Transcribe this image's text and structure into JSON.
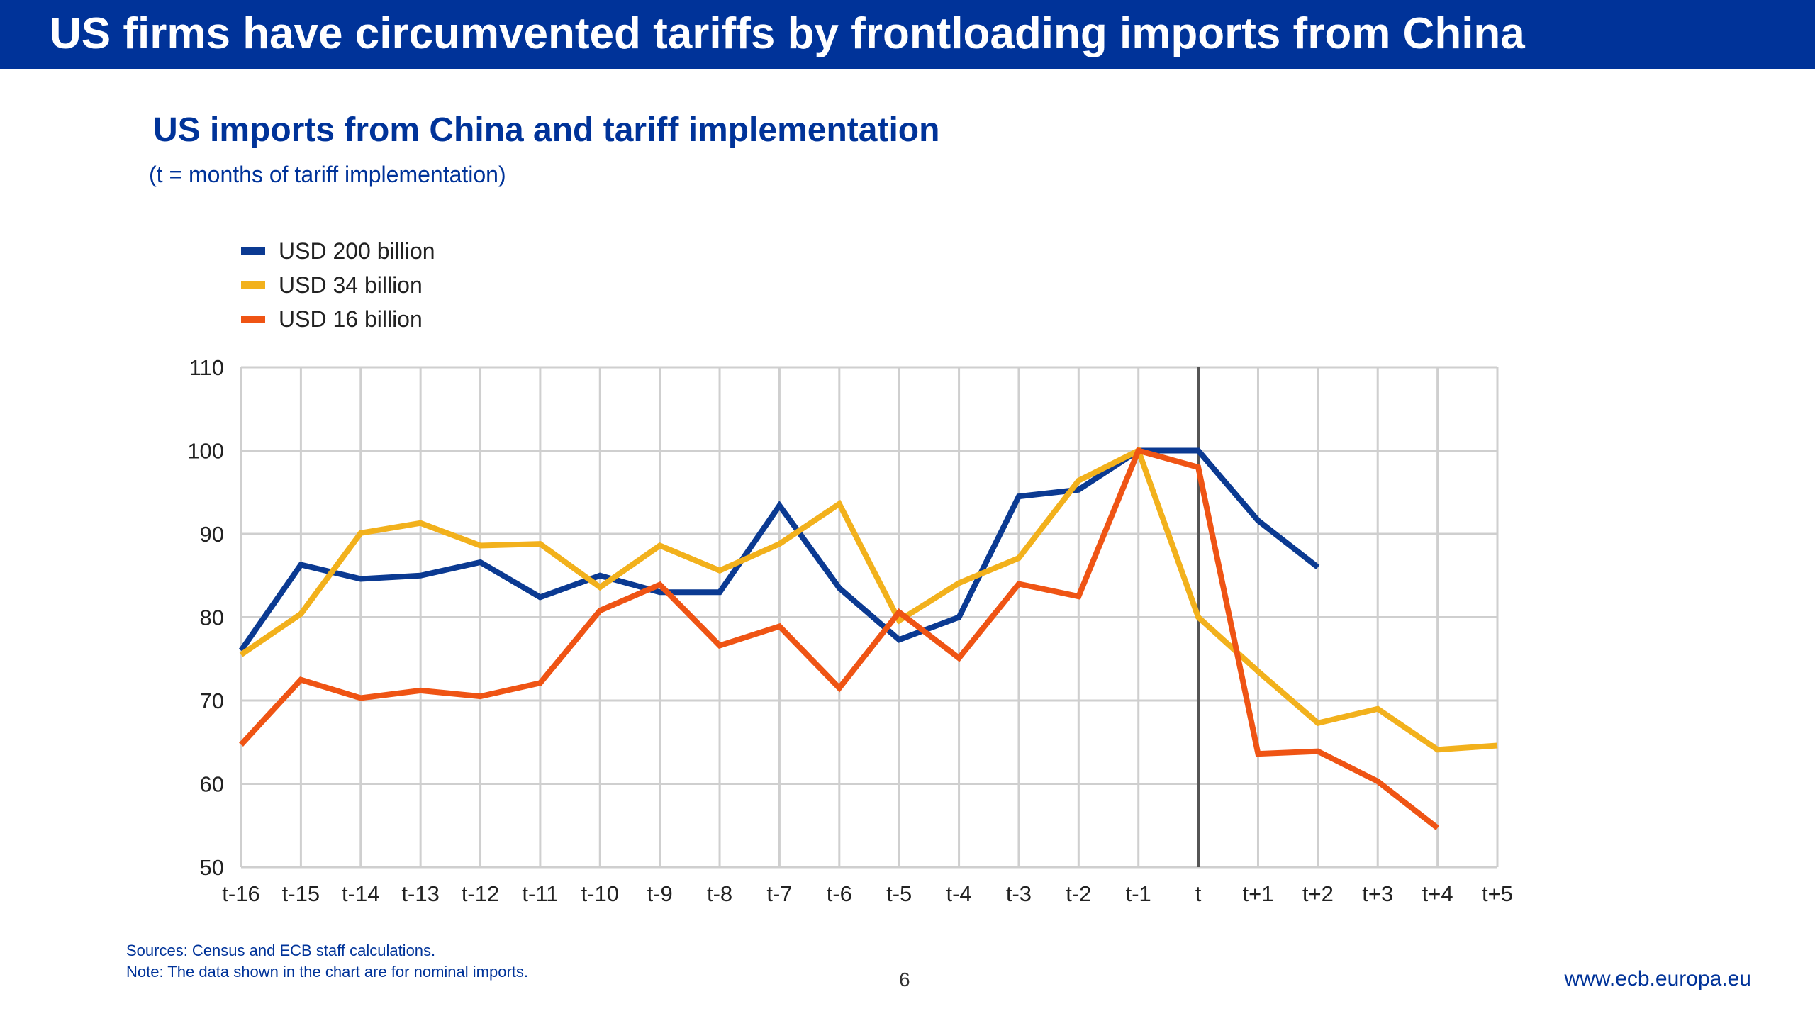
{
  "slide": {
    "title": "US firms have circumvented tariffs by frontloading imports from China",
    "page_number": "6",
    "url": "www.ecb.europa.eu",
    "sources": "Sources: Census and ECB staff calculations.",
    "note": "Note: The data shown in the chart are for nominal imports."
  },
  "colors": {
    "title_bar": "#003399",
    "usd200": "#0B3A92",
    "usd34": "#F2B11C",
    "usd16": "#EF5414",
    "grid": "#cfcfcf",
    "marker_t": "#555555"
  },
  "chart_data": {
    "type": "line",
    "title": "US imports from China and tariff implementation",
    "subtitle": "(t = months of tariff implementation)",
    "xlabel": "",
    "ylabel": "",
    "categories": [
      "t-16",
      "t-15",
      "t-14",
      "t-13",
      "t-12",
      "t-11",
      "t-10",
      "t-9",
      "t-8",
      "t-7",
      "t-6",
      "t-5",
      "t-4",
      "t-3",
      "t-2",
      "t-1",
      "t",
      "t+1",
      "t+2",
      "t+3",
      "t+4",
      "t+5"
    ],
    "ylim": [
      50,
      110
    ],
    "yticks": [
      50,
      60,
      70,
      80,
      90,
      100,
      110
    ],
    "grid": true,
    "legend_position": "top-left",
    "vertical_marker": "t",
    "series": [
      {
        "name": "USD 200 billion",
        "color": "#0B3A92",
        "values": [
          76,
          86.3,
          84.6,
          85,
          86.6,
          82.4,
          85,
          83,
          83,
          93.4,
          83.5,
          77.3,
          80,
          94.5,
          95.3,
          100,
          100,
          91.6,
          86,
          null,
          null,
          null
        ]
      },
      {
        "name": "USD 34 billion",
        "color": "#F2B11C",
        "values": [
          75.5,
          80.4,
          90.1,
          91.3,
          88.6,
          88.8,
          83.6,
          88.6,
          85.6,
          88.8,
          93.6,
          79.6,
          84.1,
          87.1,
          96.4,
          100,
          80,
          73.5,
          67.3,
          69,
          64.1,
          64.6
        ]
      },
      {
        "name": "USD 16 billion",
        "color": "#EF5414",
        "values": [
          64.7,
          72.5,
          70.3,
          71.2,
          70.5,
          72.1,
          80.8,
          83.9,
          76.6,
          78.9,
          71.5,
          80.6,
          75.1,
          84,
          82.5,
          100,
          98,
          63.6,
          63.9,
          60.3,
          54.7,
          null
        ]
      }
    ]
  }
}
